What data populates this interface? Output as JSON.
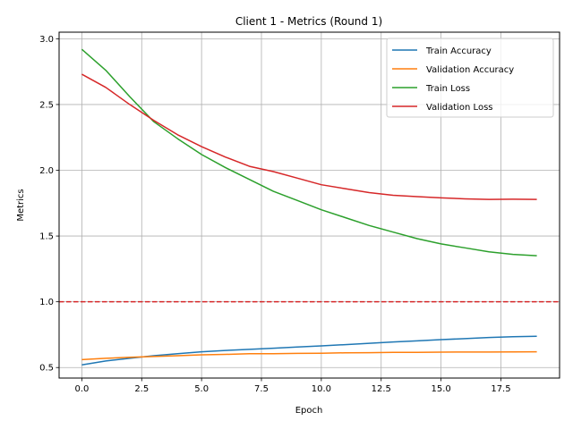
{
  "chart_data": {
    "type": "line",
    "title": "Client 1 - Metrics (Round 1)",
    "xlabel": "Epoch",
    "ylabel": "Metrics",
    "xlim": [
      -0.95,
      19.95
    ],
    "ylim": [
      0.42,
      3.05
    ],
    "xticks": [
      0,
      2.5,
      5,
      7.5,
      10,
      12.5,
      15,
      17.5
    ],
    "xtick_labels": [
      "0.0",
      "2.5",
      "5.0",
      "7.5",
      "10.0",
      "12.5",
      "15.0",
      "17.5"
    ],
    "yticks": [
      0.5,
      1.0,
      1.5,
      2.0,
      2.5,
      3.0
    ],
    "ytick_labels": [
      "0.5",
      "1.0",
      "1.5",
      "2.0",
      "2.5",
      "3.0"
    ],
    "grid": true,
    "legend_position": "top-right",
    "x": [
      0,
      1,
      2,
      3,
      4,
      5,
      6,
      7,
      8,
      9,
      10,
      11,
      12,
      13,
      14,
      15,
      16,
      17,
      18,
      19
    ],
    "series": [
      {
        "name": "Train Accuracy",
        "color": "#1f77b4",
        "values": [
          0.52,
          0.55,
          0.57,
          0.59,
          0.605,
          0.62,
          0.63,
          0.638,
          0.647,
          0.656,
          0.665,
          0.674,
          0.684,
          0.694,
          0.703,
          0.712,
          0.72,
          0.728,
          0.734,
          0.738
        ]
      },
      {
        "name": "Validation Accuracy",
        "color": "#ff7f0e",
        "values": [
          0.56,
          0.57,
          0.578,
          0.584,
          0.59,
          0.597,
          0.6,
          0.605,
          0.605,
          0.608,
          0.609,
          0.612,
          0.613,
          0.615,
          0.615,
          0.617,
          0.618,
          0.618,
          0.619,
          0.62
        ]
      },
      {
        "name": "Train Loss",
        "color": "#2ca02c",
        "values": [
          2.92,
          2.76,
          2.56,
          2.37,
          2.24,
          2.12,
          2.02,
          1.93,
          1.84,
          1.77,
          1.7,
          1.64,
          1.58,
          1.53,
          1.48,
          1.44,
          1.41,
          1.38,
          1.36,
          1.35
        ]
      },
      {
        "name": "Validation Loss",
        "color": "#d62728",
        "values": [
          2.73,
          2.63,
          2.5,
          2.38,
          2.27,
          2.18,
          2.1,
          2.03,
          1.99,
          1.94,
          1.89,
          1.86,
          1.83,
          1.81,
          1.8,
          1.79,
          1.783,
          1.778,
          1.78,
          1.778
        ]
      }
    ],
    "reference_line": {
      "y": 1.0,
      "color": "#d62728",
      "style": "dashed"
    }
  }
}
